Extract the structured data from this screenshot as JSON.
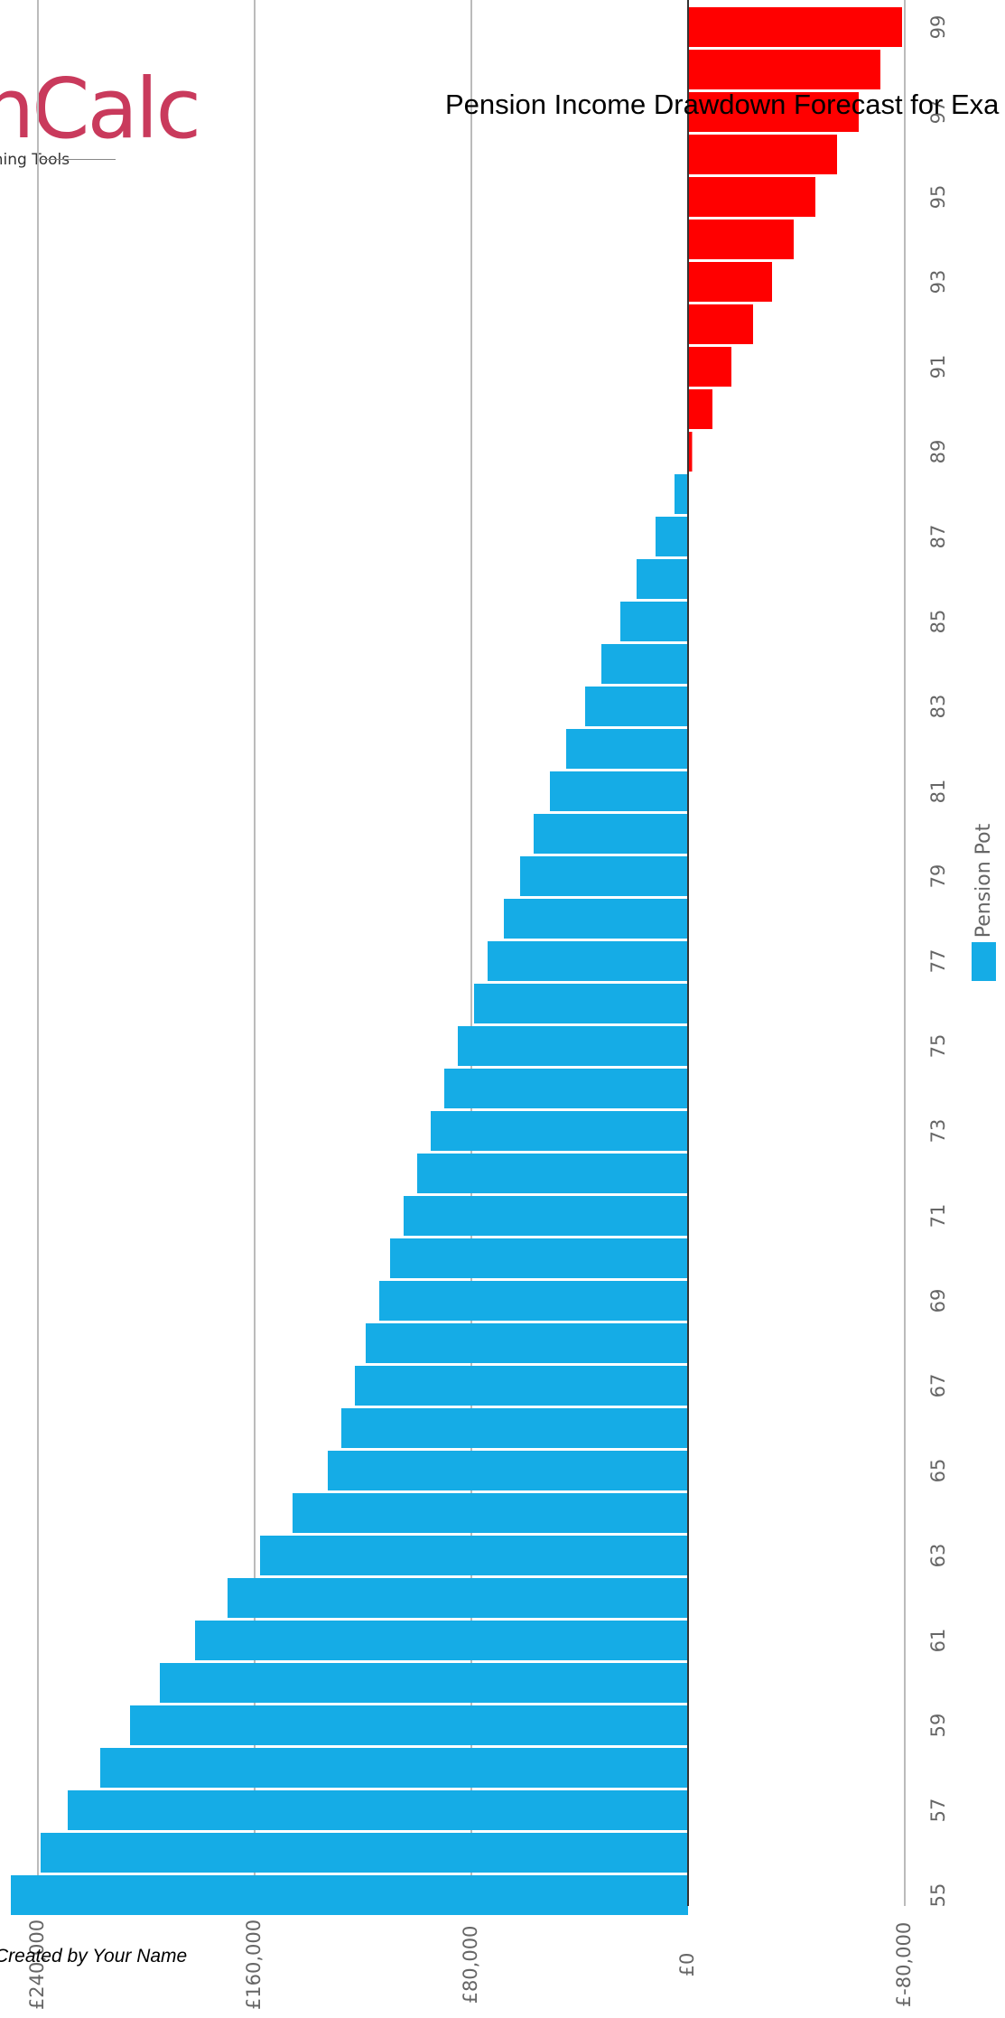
{
  "title": "Pension Income Drawdown Forecast for Exa",
  "credit": "Created by Your Name",
  "logo": {
    "main": "nCalc",
    "sub": "nning Tools"
  },
  "colors": {
    "positive": "#15ace6",
    "negative": "#ff0000",
    "grid": "#bbbbbb",
    "axis": "#333333",
    "tick": "#666666"
  },
  "chart_data": {
    "type": "bar",
    "orientation": "vertical bars rotated 90°",
    "title": "Pension Income Drawdown Forecast for Exa",
    "x": [
      55,
      56,
      57,
      58,
      59,
      60,
      61,
      62,
      63,
      64,
      65,
      66,
      67,
      68,
      69,
      70,
      71,
      72,
      73,
      74,
      75,
      76,
      77,
      78,
      79,
      80,
      81,
      82,
      83,
      84,
      85,
      86,
      87,
      88,
      89,
      90,
      91,
      92,
      93,
      94,
      95,
      96,
      97,
      98,
      99
    ],
    "x_tick_labels": [
      "55",
      "57",
      "59",
      "61",
      "63",
      "65",
      "67",
      "69",
      "71",
      "73",
      "75",
      "77",
      "79",
      "81",
      "83",
      "85",
      "87",
      "89",
      "91",
      "93",
      "95",
      "97",
      "99"
    ],
    "series": [
      {
        "name": "Pension Pot",
        "values": [
          250000,
          239000,
          229000,
          217000,
          206000,
          195000,
          182000,
          170000,
          158000,
          146000,
          133000,
          128000,
          123000,
          119000,
          114000,
          110000,
          105000,
          100000,
          95000,
          90000,
          85000,
          79000,
          74000,
          68000,
          62000,
          57000,
          51000,
          45000,
          38000,
          32000,
          25000,
          19000,
          12000,
          5000,
          -1500,
          -9000,
          -16000,
          -24000,
          -31000,
          -39000,
          -47000,
          -55000,
          -63000,
          -71000,
          -79000
        ],
        "positive_color": "#15ace6",
        "negative_color": "#ff0000"
      }
    ],
    "y_tick_labels": [
      "£240,000",
      "£160,000",
      "£80,000",
      "£0",
      "£-80,000"
    ],
    "ylim": [
      -80000,
      240000
    ],
    "grid": true,
    "legend": [
      "Pension Pot"
    ],
    "legend_position": "right"
  }
}
